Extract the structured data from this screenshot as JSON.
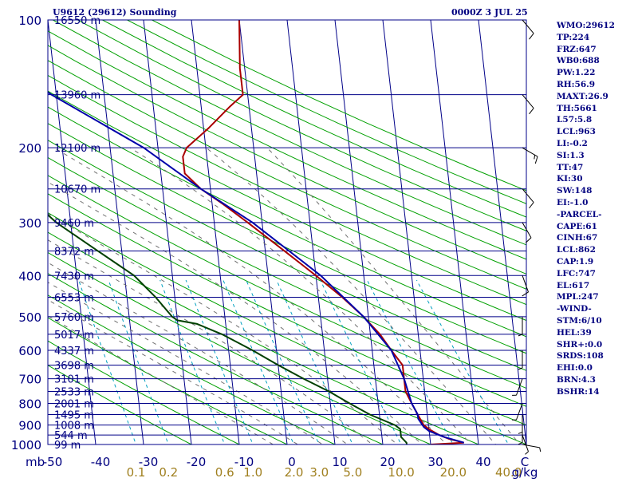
{
  "header": {
    "station": "U9612 (29612) Sounding",
    "time": "0000Z  3 JUL 25"
  },
  "chart_data": {
    "type": "line",
    "title": "U9612 (29612) Sounding",
    "xlabel": "",
    "ylabel": "mb",
    "x_unit_label": "C",
    "mixing_ratio_unit": "g/kg",
    "xlim": [
      -50,
      50
    ],
    "ylim": [
      1000,
      100
    ],
    "pressure_ticks": [
      "100",
      "200",
      "300",
      "400",
      "500",
      "600",
      "700",
      "800",
      "900",
      "1000"
    ],
    "temp_ticks": [
      "-50",
      "-40",
      "-30",
      "-20",
      "-10",
      "0",
      "10",
      "20",
      "30",
      "40"
    ],
    "mixing_ratio_ticks": [
      "0.1",
      "0.2",
      "0.6",
      "1.0",
      "2.0",
      "3.0",
      "5.0",
      "10.0",
      "20.0",
      "40.0"
    ],
    "height_labels": [
      {
        "p": 100,
        "text": "16550 m"
      },
      {
        "p": 150,
        "text": "13960 m"
      },
      {
        "p": 200,
        "text": "12100 m"
      },
      {
        "p": 250,
        "text": "10670 m"
      },
      {
        "p": 300,
        "text": "9460 m"
      },
      {
        "p": 350,
        "text": "8372 m"
      },
      {
        "p": 400,
        "text": "7430 m"
      },
      {
        "p": 450,
        "text": "6553 m"
      },
      {
        "p": 500,
        "text": "5760 m"
      },
      {
        "p": 550,
        "text": "5017 m"
      },
      {
        "p": 600,
        "text": "4337 m"
      },
      {
        "p": 650,
        "text": "3698 m"
      },
      {
        "p": 700,
        "text": "3101 m"
      },
      {
        "p": 750,
        "text": "2533 m"
      },
      {
        "p": 800,
        "text": "2001 m"
      },
      {
        "p": 850,
        "text": "1495 m"
      },
      {
        "p": 900,
        "text": "1008 m"
      },
      {
        "p": 950,
        "text": "544 m"
      },
      {
        "p": 1000,
        "text": "99 m"
      }
    ],
    "series": [
      {
        "key": "temperature",
        "color": "#aa0000",
        "points": [
          [
            1000,
            20
          ],
          [
            990,
            27
          ],
          [
            970,
            24
          ],
          [
            950,
            22
          ],
          [
            920,
            20
          ],
          [
            900,
            19
          ],
          [
            850,
            18
          ],
          [
            800,
            17
          ],
          [
            750,
            16
          ],
          [
            700,
            16
          ],
          [
            650,
            16
          ],
          [
            600,
            14
          ],
          [
            550,
            12
          ],
          [
            500,
            9
          ],
          [
            450,
            5
          ],
          [
            400,
            0
          ],
          [
            350,
            -6
          ],
          [
            300,
            -13
          ],
          [
            270,
            -18
          ],
          [
            250,
            -22
          ],
          [
            230,
            -25
          ],
          [
            210,
            -25
          ],
          [
            200,
            -24
          ],
          [
            180,
            -19
          ],
          [
            160,
            -14
          ],
          [
            150,
            -11
          ],
          [
            140,
            -11
          ],
          [
            130,
            -11
          ],
          [
            100,
            -10
          ]
        ]
      },
      {
        "key": "dewpoint",
        "color": "#004000",
        "points": [
          [
            1000,
            15
          ],
          [
            990,
            15
          ],
          [
            960,
            14
          ],
          [
            950,
            14
          ],
          [
            920,
            14
          ],
          [
            900,
            13
          ],
          [
            850,
            8
          ],
          [
            800,
            4
          ],
          [
            750,
            0
          ],
          [
            700,
            -5
          ],
          [
            650,
            -10
          ],
          [
            600,
            -15
          ],
          [
            550,
            -21
          ],
          [
            520,
            -26
          ],
          [
            510,
            -30
          ],
          [
            500,
            -31
          ],
          [
            450,
            -34
          ],
          [
            400,
            -38
          ],
          [
            350,
            -45
          ],
          [
            300,
            -53
          ],
          [
            250,
            -60
          ],
          [
            220,
            -64
          ],
          [
            200,
            -64
          ],
          [
            180,
            -58
          ],
          [
            160,
            -55
          ],
          [
            150,
            -55
          ],
          [
            140,
            -60
          ],
          [
            100,
            -68
          ]
        ]
      },
      {
        "key": "parcel",
        "color": "#0000aa",
        "points": [
          [
            990,
            27
          ],
          [
            960,
            23
          ],
          [
            930,
            20
          ],
          [
            910,
            19
          ],
          [
            870,
            18
          ],
          [
            850,
            18
          ],
          [
            800,
            17
          ],
          [
            700,
            16
          ],
          [
            600,
            14
          ],
          [
            500,
            9
          ],
          [
            400,
            1
          ],
          [
            300,
            -12
          ],
          [
            250,
            -22
          ],
          [
            200,
            -33
          ],
          [
            150,
            -51
          ],
          [
            120,
            -63
          ]
        ]
      }
    ],
    "wind_barbs": [
      {
        "p": 1000,
        "dir": 100,
        "spd": 5
      },
      {
        "p": 950,
        "dir": 160,
        "spd": 5
      },
      {
        "p": 900,
        "dir": 180,
        "spd": 5
      },
      {
        "p": 850,
        "dir": 180,
        "spd": 5
      },
      {
        "p": 800,
        "dir": 200,
        "spd": 5
      },
      {
        "p": 700,
        "dir": 200,
        "spd": 5
      },
      {
        "p": 600,
        "dir": 180,
        "spd": 5
      },
      {
        "p": 500,
        "dir": 180,
        "spd": 5
      },
      {
        "p": 400,
        "dir": 160,
        "spd": 10
      },
      {
        "p": 300,
        "dir": 150,
        "spd": 10
      },
      {
        "p": 250,
        "dir": 140,
        "spd": 10
      },
      {
        "p": 200,
        "dir": 120,
        "spd": 15
      },
      {
        "p": 150,
        "dir": 140,
        "spd": 10
      },
      {
        "p": 100,
        "dir": 140,
        "spd": 10
      }
    ],
    "colors": {
      "isobar": "#000088",
      "isotherm": "#000088",
      "dry_adiabat": "#00a000",
      "moist_adiabat": "#707070",
      "mixing_ratio": "#00a0c0",
      "label": "#000080",
      "mr_label": "#a08020"
    }
  },
  "stats": [
    "WMO:29612",
    "TP:224",
    "FRZ:647",
    "WB0:688",
    "PW:1.22",
    "RH:56.9",
    "MAXT:26.9",
    "TH:5661",
    "L57:5.8",
    "LCL:963",
    "LI:-0.2",
    "SI:1.3",
    "TT:47",
    "KI:30",
    "SW:148",
    "EI:-1.0",
    "-PARCEL-",
    "CAPE:61",
    "CINH:67",
    "LCL:862",
    "CAP:1.9",
    "LFC:747",
    "EL:617",
    "MPL:247",
    "-WIND-",
    "STM:6/10",
    "HEL:39",
    "SHR+:0.0",
    "SRDS:108",
    "EHI:0.0",
    "BRN:4.3",
    "BSHR:14"
  ]
}
